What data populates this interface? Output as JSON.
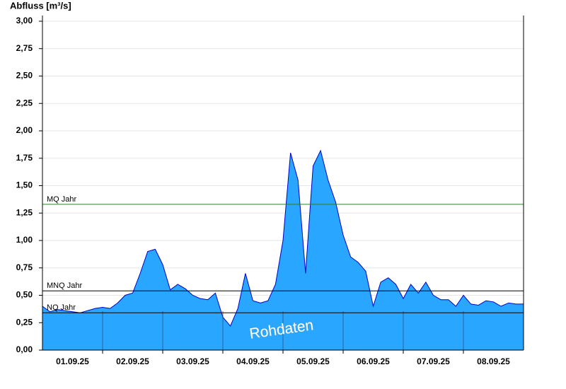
{
  "chart_data": {
    "type": "area",
    "title": "Abfluss [m³/s]",
    "watermark": "Rohdaten",
    "categories": [
      null,
      null,
      null,
      null,
      "01.09.25",
      null,
      null,
      null,
      null,
      null,
      null,
      null,
      "02.09.25",
      null,
      null,
      null,
      null,
      null,
      null,
      null,
      "03.09.25",
      null,
      null,
      null,
      null,
      null,
      null,
      null,
      "04.09.25",
      null,
      null,
      null,
      null,
      null,
      null,
      null,
      "05.09.25",
      null,
      null,
      null,
      null,
      null,
      null,
      null,
      "06.09.25",
      null,
      null,
      null,
      null,
      null,
      null,
      null,
      "07.09.25",
      null,
      null,
      null,
      null,
      null,
      null,
      null,
      "08.09.25",
      null,
      null,
      null,
      null
    ],
    "series": [
      {
        "name": "Abfluss",
        "color": "#29a6ff",
        "line_color": "#0000c8",
        "values": [
          0.4,
          0.35,
          0.37,
          0.36,
          0.35,
          0.34,
          0.36,
          0.38,
          0.39,
          0.38,
          0.43,
          0.5,
          0.52,
          0.7,
          0.9,
          0.92,
          0.78,
          0.55,
          0.6,
          0.56,
          0.5,
          0.47,
          0.46,
          0.52,
          0.3,
          0.22,
          0.38,
          0.7,
          0.45,
          0.43,
          0.45,
          0.6,
          1.0,
          1.8,
          1.55,
          0.7,
          1.68,
          1.82,
          1.55,
          1.35,
          1.05,
          0.85,
          0.8,
          0.72,
          0.4,
          0.62,
          0.66,
          0.6,
          0.47,
          0.6,
          0.52,
          0.62,
          0.5,
          0.46,
          0.46,
          0.4,
          0.5,
          0.42,
          0.41,
          0.45,
          0.44,
          0.4,
          0.43,
          0.42,
          0.42
        ]
      }
    ],
    "reference_lines": [
      {
        "label": "MQ Jahr",
        "value": 1.33,
        "color": "#2e7d32"
      },
      {
        "label": "MNQ Jahr",
        "value": 0.54,
        "color": "#000000"
      },
      {
        "label": "NQ Jahr",
        "value": 0.34,
        "color": "#000000"
      }
    ],
    "ylim": [
      0,
      3
    ],
    "yticks": [
      {
        "value": 0,
        "label": "0,00"
      },
      {
        "value": 0.25,
        "label": "0,25"
      },
      {
        "value": 0.5,
        "label": "0,50"
      },
      {
        "value": 0.75,
        "label": "0,75"
      },
      {
        "value": 1,
        "label": "1,00"
      },
      {
        "value": 1.25,
        "label": "1,25"
      },
      {
        "value": 1.5,
        "label": "1,50"
      },
      {
        "value": 1.75,
        "label": "1,75"
      },
      {
        "value": 2,
        "label": "2,00"
      },
      {
        "value": 2.25,
        "label": "2,25"
      },
      {
        "value": 2.5,
        "label": "2,50"
      },
      {
        "value": 2.75,
        "label": "2,75"
      },
      {
        "value": 3,
        "label": "3,00"
      }
    ],
    "grid": true
  }
}
